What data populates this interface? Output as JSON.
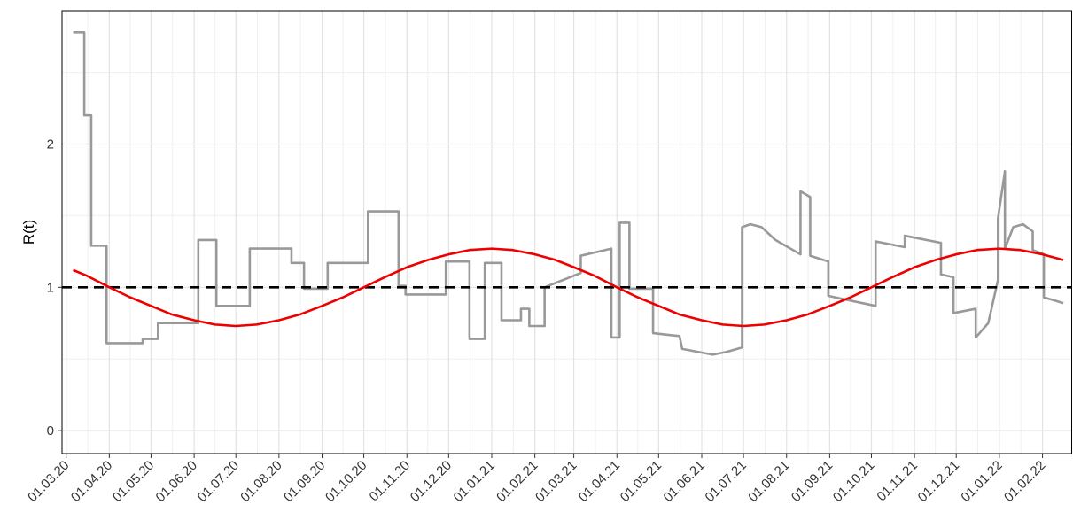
{
  "chart_data": {
    "type": "line",
    "y_label": "R(t)",
    "xlim": [
      "2020-02-27",
      "2022-02-22"
    ],
    "ylim": [
      -0.16,
      2.93
    ],
    "yticks": [
      0,
      1,
      2
    ],
    "xticks": [
      {
        "value": "2020-03-01",
        "label": "01.03.20"
      },
      {
        "value": "2020-04-01",
        "label": "01.04.20"
      },
      {
        "value": "2020-05-01",
        "label": "01.05.20"
      },
      {
        "value": "2020-06-01",
        "label": "01.06.20"
      },
      {
        "value": "2020-07-01",
        "label": "01.07.20"
      },
      {
        "value": "2020-08-01",
        "label": "01.08.20"
      },
      {
        "value": "2020-09-01",
        "label": "01.09.20"
      },
      {
        "value": "2020-10-01",
        "label": "01.10.20"
      },
      {
        "value": "2020-11-01",
        "label": "01.11.20"
      },
      {
        "value": "2020-12-01",
        "label": "01.12.20"
      },
      {
        "value": "2021-01-01",
        "label": "01.01.21"
      },
      {
        "value": "2021-02-01",
        "label": "01.02.21"
      },
      {
        "value": "2021-03-01",
        "label": "01.03.21"
      },
      {
        "value": "2021-04-01",
        "label": "01.04.21"
      },
      {
        "value": "2021-05-01",
        "label": "01.05.21"
      },
      {
        "value": "2021-06-01",
        "label": "01.06.21"
      },
      {
        "value": "2021-07-01",
        "label": "01.07.21"
      },
      {
        "value": "2021-08-01",
        "label": "01.08.21"
      },
      {
        "value": "2021-09-01",
        "label": "01.09.21"
      },
      {
        "value": "2021-10-01",
        "label": "01.10.21"
      },
      {
        "value": "2021-11-01",
        "label": "01.11.21"
      },
      {
        "value": "2021-12-01",
        "label": "01.12.21"
      },
      {
        "value": "2022-01-01",
        "label": "01.01.22"
      },
      {
        "value": "2022-02-01",
        "label": "01.02.22"
      }
    ],
    "grid": true,
    "reference_line": {
      "y": 1,
      "color": "#000000",
      "dashed": true
    },
    "series": [
      {
        "color": "#999999",
        "x": [
          "2020-03-06",
          "2020-03-14",
          "2020-03-14",
          "2020-03-19",
          "2020-03-19",
          "2020-03-30",
          "2020-03-30",
          "2020-04-25",
          "2020-04-25",
          "2020-05-06",
          "2020-05-06",
          "2020-06-04",
          "2020-06-04",
          "2020-06-17",
          "2020-06-17",
          "2020-07-11",
          "2020-07-11",
          "2020-08-10",
          "2020-08-10",
          "2020-08-19",
          "2020-08-19",
          "2020-09-05",
          "2020-09-05",
          "2020-10-04",
          "2020-10-04",
          "2020-10-26",
          "2020-10-26",
          "2020-10-31",
          "2020-10-31",
          "2020-11-29",
          "2020-11-29",
          "2020-12-16",
          "2020-12-16",
          "2020-12-27",
          "2020-12-27",
          "2021-01-08",
          "2021-01-08",
          "2021-01-22",
          "2021-01-22",
          "2021-01-28",
          "2021-01-28",
          "2021-02-08",
          "2021-02-08",
          "2021-03-06",
          "2021-03-06",
          "2021-03-28",
          "2021-03-28",
          "2021-04-03",
          "2021-04-03",
          "2021-04-10",
          "2021-04-10",
          "2021-04-27",
          "2021-04-27",
          "2021-05-16",
          "2021-05-18",
          "2021-06-09",
          "2021-06-19",
          "2021-06-30",
          "2021-06-30",
          "2021-07-06",
          "2021-07-14",
          "2021-07-24",
          "2021-08-11",
          "2021-08-11",
          "2021-08-18",
          "2021-08-18",
          "2021-08-31",
          "2021-08-31",
          "2021-10-04",
          "2021-10-04",
          "2021-10-25",
          "2021-10-25",
          "2021-11-20",
          "2021-11-20",
          "2021-11-29",
          "2021-11-29",
          "2021-12-15",
          "2021-12-15",
          "2021-12-24",
          "2021-12-31",
          "2021-12-31",
          "2022-01-05",
          "2022-01-05",
          "2022-01-11",
          "2022-01-18",
          "2022-01-25",
          "2022-01-25",
          "2022-02-02",
          "2022-02-02",
          "2022-02-16"
        ],
        "values": [
          2.78,
          2.78,
          2.2,
          2.2,
          1.29,
          1.29,
          0.61,
          0.61,
          0.64,
          0.64,
          0.75,
          0.75,
          1.33,
          1.33,
          0.87,
          0.87,
          1.27,
          1.27,
          1.17,
          1.17,
          0.99,
          0.99,
          1.17,
          1.17,
          1.53,
          1.53,
          1.01,
          1.01,
          0.95,
          0.95,
          1.18,
          1.18,
          0.64,
          0.64,
          1.17,
          1.17,
          0.77,
          0.77,
          0.85,
          0.85,
          0.73,
          0.73,
          1.0,
          1.1,
          1.22,
          1.27,
          0.65,
          0.65,
          1.45,
          1.45,
          0.99,
          0.99,
          0.68,
          0.66,
          0.57,
          0.53,
          0.55,
          0.58,
          1.42,
          1.44,
          1.42,
          1.33,
          1.23,
          1.67,
          1.63,
          1.22,
          1.18,
          0.94,
          0.87,
          1.32,
          1.28,
          1.36,
          1.31,
          1.09,
          1.07,
          0.82,
          0.85,
          0.65,
          0.75,
          1.05,
          1.48,
          1.81,
          1.27,
          1.42,
          1.44,
          1.39,
          1.26,
          1.23,
          0.93,
          0.89
        ]
      },
      {
        "color": "#ee0000",
        "x": [
          "2020-03-06",
          "2020-03-16",
          "2020-04-01",
          "2020-04-16",
          "2020-05-01",
          "2020-05-16",
          "2020-06-01",
          "2020-06-16",
          "2020-07-01",
          "2020-07-16",
          "2020-08-01",
          "2020-08-16",
          "2020-09-01",
          "2020-09-16",
          "2020-10-01",
          "2020-10-16",
          "2020-11-01",
          "2020-11-16",
          "2020-12-01",
          "2020-12-16",
          "2021-01-01",
          "2021-01-16",
          "2021-02-01",
          "2021-02-16",
          "2021-03-01",
          "2021-03-16",
          "2021-04-01",
          "2021-04-16",
          "2021-05-01",
          "2021-05-16",
          "2021-06-01",
          "2021-06-16",
          "2021-07-01",
          "2021-07-16",
          "2021-08-01",
          "2021-08-16",
          "2021-09-01",
          "2021-09-16",
          "2021-10-01",
          "2021-10-16",
          "2021-11-01",
          "2021-11-16",
          "2021-12-01",
          "2021-12-16",
          "2022-01-01",
          "2022-01-16",
          "2022-02-01",
          "2022-02-16"
        ],
        "values": [
          1.12,
          1.08,
          1.0,
          0.93,
          0.87,
          0.81,
          0.77,
          0.74,
          0.73,
          0.74,
          0.77,
          0.81,
          0.87,
          0.93,
          1.0,
          1.07,
          1.14,
          1.19,
          1.23,
          1.26,
          1.27,
          1.26,
          1.23,
          1.19,
          1.14,
          1.08,
          1.0,
          0.93,
          0.87,
          0.81,
          0.77,
          0.74,
          0.73,
          0.74,
          0.77,
          0.81,
          0.87,
          0.93,
          1.0,
          1.07,
          1.14,
          1.19,
          1.23,
          1.26,
          1.27,
          1.26,
          1.23,
          1.19
        ]
      }
    ]
  }
}
